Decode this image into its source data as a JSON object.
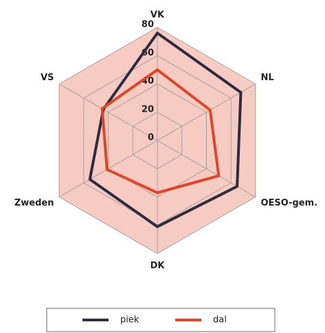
{
  "chart_data": {
    "type": "radar",
    "categories": [
      "VK",
      "NL",
      "OESO-gem.",
      "DK",
      "Zweden",
      "VS"
    ],
    "series": [
      {
        "name": "piek",
        "color": "#2e2c3e",
        "values": [
          76,
          68,
          65,
          61,
          55,
          44
        ]
      },
      {
        "name": "dal",
        "color": "#e0452a",
        "values": [
          50,
          43,
          50,
          37,
          41,
          45
        ]
      }
    ],
    "ylim": [
      0,
      80
    ],
    "yticks": [
      0,
      20,
      40,
      60,
      80
    ],
    "grid": true
  }
}
